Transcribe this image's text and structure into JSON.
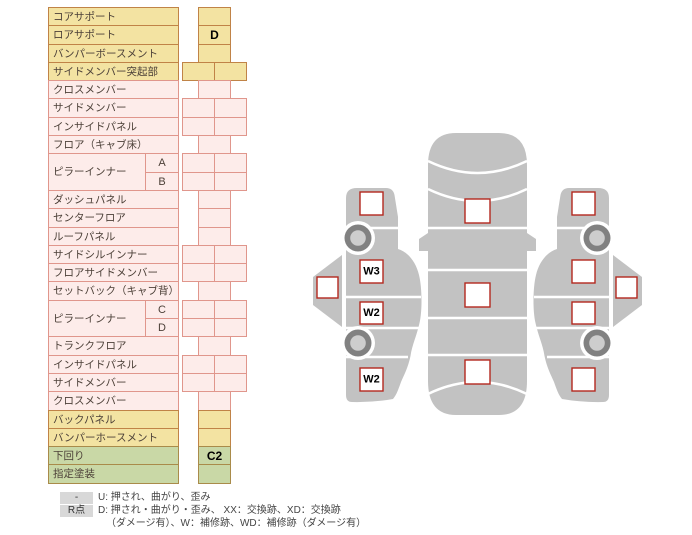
{
  "table": {
    "rows": [
      {
        "type": "simple",
        "label": "コアサポート",
        "scheme": "yellow",
        "cells": 1,
        "marks": [
          ""
        ]
      },
      {
        "type": "simple",
        "label": "ロアサポート",
        "scheme": "yellow",
        "cells": 1,
        "marks": [
          "D"
        ]
      },
      {
        "type": "simple",
        "label": "バンパーボースメント",
        "scheme": "yellow",
        "cells": 1,
        "marks": [
          ""
        ]
      },
      {
        "type": "simple",
        "label": "サイドメンバー突起部",
        "scheme": "yellow",
        "cells": 2,
        "marks": [
          "",
          ""
        ]
      },
      {
        "type": "simple",
        "label": "クロスメンバー",
        "scheme": "pink",
        "cells": 1,
        "marks": [
          ""
        ]
      },
      {
        "type": "simple",
        "label": "サイドメンバー",
        "scheme": "pink",
        "cells": 2,
        "marks": [
          "",
          ""
        ]
      },
      {
        "type": "simple",
        "label": "インサイドパネル",
        "scheme": "pink",
        "cells": 2,
        "marks": [
          "",
          ""
        ]
      },
      {
        "type": "simple",
        "label": "フロア（キャブ床）",
        "scheme": "pink",
        "cells": 1,
        "marks": [
          ""
        ]
      },
      {
        "type": "group",
        "label": "ピラーインナー",
        "scheme": "pink",
        "subs": [
          {
            "label": "A",
            "cells": 2,
            "marks": [
              "",
              ""
            ]
          },
          {
            "label": "B",
            "cells": 2,
            "marks": [
              "",
              ""
            ]
          }
        ]
      },
      {
        "type": "simple",
        "label": "ダッシュパネル",
        "scheme": "pink",
        "cells": 1,
        "marks": [
          ""
        ]
      },
      {
        "type": "simple",
        "label": "センターフロア",
        "scheme": "pink",
        "cells": 1,
        "marks": [
          ""
        ]
      },
      {
        "type": "simple",
        "label": "ルーフパネル",
        "scheme": "pink",
        "cells": 1,
        "marks": [
          ""
        ]
      },
      {
        "type": "simple",
        "label": "サイドシルインナー",
        "scheme": "pink",
        "cells": 2,
        "marks": [
          "",
          ""
        ]
      },
      {
        "type": "simple",
        "label": "フロアサイドメンバー",
        "scheme": "pink",
        "cells": 2,
        "marks": [
          "",
          ""
        ]
      },
      {
        "type": "simple",
        "label": "セットバック（キャブ背）",
        "scheme": "pink",
        "cells": 1,
        "marks": [
          ""
        ]
      },
      {
        "type": "group",
        "label": "ピラーインナー",
        "scheme": "pink",
        "subs": [
          {
            "label": "C",
            "cells": 2,
            "marks": [
              "",
              ""
            ]
          },
          {
            "label": "D",
            "cells": 2,
            "marks": [
              "",
              ""
            ]
          }
        ]
      },
      {
        "type": "simple",
        "label": "トランクフロア",
        "scheme": "pink",
        "cells": 1,
        "marks": [
          ""
        ]
      },
      {
        "type": "simple",
        "label": "インサイドパネル",
        "scheme": "pink",
        "cells": 2,
        "marks": [
          "",
          ""
        ]
      },
      {
        "type": "simple",
        "label": "サイドメンバー",
        "scheme": "pink",
        "cells": 2,
        "marks": [
          "",
          ""
        ]
      },
      {
        "type": "simple",
        "label": "クロスメンバー",
        "scheme": "pink",
        "cells": 1,
        "marks": [
          ""
        ]
      },
      {
        "type": "simple",
        "label": "バックパネル",
        "scheme": "yellow",
        "cells": 1,
        "marks": [
          ""
        ]
      },
      {
        "type": "simple",
        "label": "バンパーホースメント",
        "scheme": "yellow",
        "cells": 1,
        "marks": [
          ""
        ]
      },
      {
        "type": "simple",
        "label": "下回り",
        "scheme": "green",
        "cells": 1,
        "marks": [
          "C2"
        ]
      },
      {
        "type": "simple",
        "label": "指定塗装",
        "scheme": "green",
        "cells": 1,
        "marks": [
          ""
        ]
      }
    ]
  },
  "diagram": {
    "left": {
      "marks": [
        "",
        "W3",
        "W2",
        "W2",
        ""
      ]
    },
    "center": {
      "marks": [
        "",
        "",
        ""
      ]
    },
    "right": {
      "marks": [
        "",
        "",
        "",
        "",
        ""
      ]
    }
  },
  "legend": {
    "rows": [
      {
        "key": "-",
        "text": "U: 押され、曲がり、歪み"
      },
      {
        "key": "R点",
        "text": "D: 押され・曲がり・歪み、 XX：交換跡、XD：交換跡"
      },
      {
        "key": "",
        "text": "（ダメージ有）、W：補修跡、WD：補修跡（ダメージ有）"
      }
    ]
  },
  "colors": {
    "row_yellow": "#f3e3a2",
    "row_yellow_border": "#c08347",
    "row_pink": "#fdecea",
    "row_pink_border": "#e0968c",
    "row_green": "#c9d8a6",
    "row_green_border": "#a98b4a",
    "mark_square_border": "#b3281e",
    "car_body_gray": "#c2c2c2",
    "wheel_ring": "#818181",
    "wheel_hub": "#cdcdcd",
    "legend_key_bg": "#d8d8d8"
  }
}
